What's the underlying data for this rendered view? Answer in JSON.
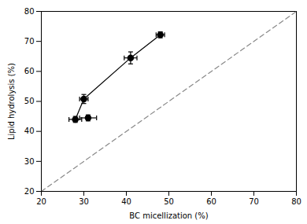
{
  "chart_data": {
    "type": "scatter",
    "xlabel": "BC micellization (%)",
    "ylabel": "Lipid hydrolysis (%)",
    "xlim": [
      20,
      80
    ],
    "ylim": [
      20,
      80
    ],
    "xticks": [
      20,
      30,
      40,
      50,
      60,
      70,
      80
    ],
    "yticks": [
      20,
      30,
      40,
      50,
      60,
      70,
      80
    ],
    "grid": false,
    "series": [
      {
        "type": "line",
        "line_style": "dashed",
        "color": "#888888",
        "x": [
          20,
          80
        ],
        "values": [
          20,
          80
        ]
      },
      {
        "type": "line",
        "line_style": "solid",
        "color": "#000000",
        "x": [
          28.0,
          30.0,
          41.0,
          48.0
        ],
        "values": [
          44.0,
          50.8,
          64.5,
          72.2
        ]
      },
      {
        "type": "scatter",
        "marker": "circle",
        "color": "#000000",
        "x": [
          28.0,
          30.0,
          31.0,
          41.0,
          48.0
        ],
        "values": [
          44.0,
          50.8,
          44.5,
          64.5,
          72.2
        ],
        "xerr": [
          1.5,
          1.0,
          2.0,
          1.5,
          1.0
        ],
        "yerr": [
          1.0,
          1.5,
          1.0,
          2.0,
          1.0
        ]
      }
    ]
  }
}
